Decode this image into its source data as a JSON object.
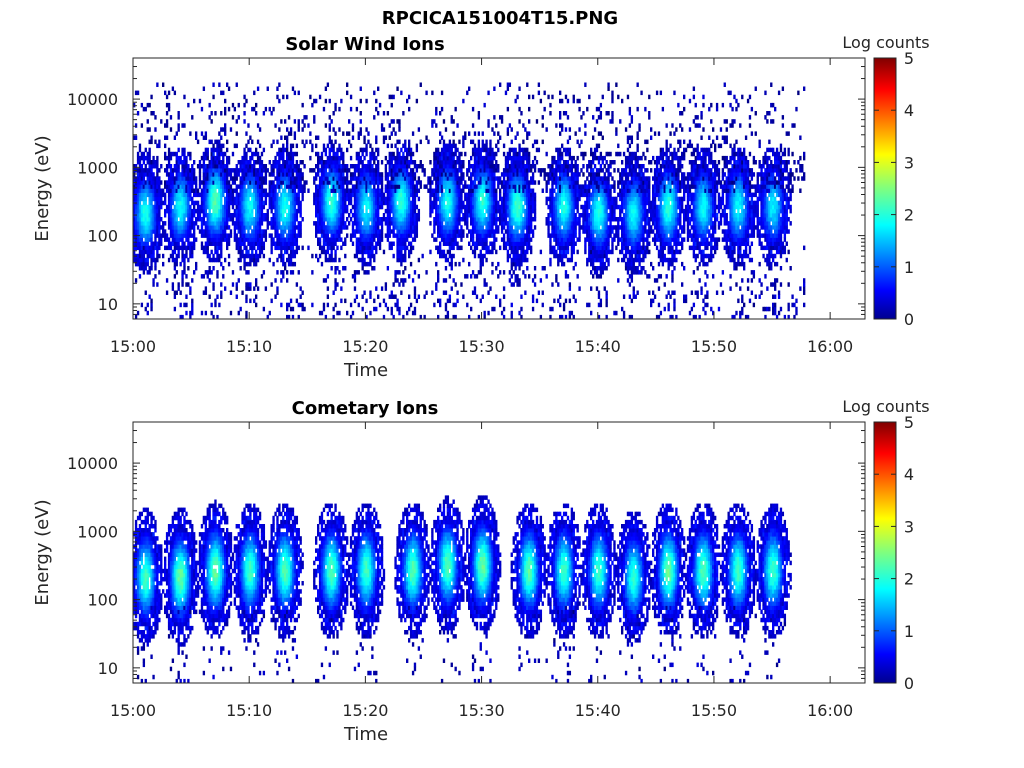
{
  "figure": {
    "title": "RPCICA151004T15.PNG"
  },
  "chart_data": [
    {
      "type": "heatmap",
      "title": "Solar Wind Ions",
      "xlabel": "Time",
      "ylabel": "Energy (eV)",
      "x_range": [
        "15:00",
        "16:03"
      ],
      "x_ticks": [
        "15:00",
        "15:10",
        "15:20",
        "15:30",
        "15:40",
        "15:50",
        "16:00"
      ],
      "y_scale": "log",
      "y_range": [
        6,
        40000
      ],
      "y_ticks": [
        10,
        100,
        1000,
        10000
      ],
      "y_tick_labels": [
        "10",
        "100",
        "1000",
        "10000"
      ],
      "data_extent_x": [
        "15:00",
        "15:57"
      ],
      "colorbar": {
        "label": "Log counts",
        "range": [
          0,
          5
        ],
        "ticks": [
          "0",
          "1",
          "2",
          "3",
          "4",
          "5"
        ],
        "colormap": "jet"
      },
      "bursts": [
        {
          "time": "15:01",
          "peak_eV": 200,
          "peak_log_counts": 2.0
        },
        {
          "time": "15:04",
          "peak_eV": 250,
          "peak_log_counts": 1.9
        },
        {
          "time": "15:07",
          "peak_eV": 300,
          "peak_log_counts": 2.3
        },
        {
          "time": "15:10",
          "peak_eV": 250,
          "peak_log_counts": 1.9
        },
        {
          "time": "15:13",
          "peak_eV": 250,
          "peak_log_counts": 2.0
        },
        {
          "time": "15:17",
          "peak_eV": 300,
          "peak_log_counts": 2.1
        },
        {
          "time": "15:20",
          "peak_eV": 250,
          "peak_log_counts": 1.9
        },
        {
          "time": "15:23",
          "peak_eV": 300,
          "peak_log_counts": 2.1
        },
        {
          "time": "15:27",
          "peak_eV": 300,
          "peak_log_counts": 2.0
        },
        {
          "time": "15:30",
          "peak_eV": 300,
          "peak_log_counts": 2.1
        },
        {
          "time": "15:33",
          "peak_eV": 250,
          "peak_log_counts": 2.2
        },
        {
          "time": "15:37",
          "peak_eV": 250,
          "peak_log_counts": 2.0
        },
        {
          "time": "15:40",
          "peak_eV": 200,
          "peak_log_counts": 2.0
        },
        {
          "time": "15:43",
          "peak_eV": 200,
          "peak_log_counts": 1.9
        },
        {
          "time": "15:46",
          "peak_eV": 250,
          "peak_log_counts": 2.1
        },
        {
          "time": "15:49",
          "peak_eV": 250,
          "peak_log_counts": 1.9
        },
        {
          "time": "15:52",
          "peak_eV": 250,
          "peak_log_counts": 1.9
        },
        {
          "time": "15:55",
          "peak_eV": 250,
          "peak_log_counts": 1.8
        }
      ]
    },
    {
      "type": "heatmap",
      "title": "Cometary Ions",
      "xlabel": "Time",
      "ylabel": "Energy (eV)",
      "x_range": [
        "15:00",
        "16:03"
      ],
      "x_ticks": [
        "15:00",
        "15:10",
        "15:20",
        "15:30",
        "15:40",
        "15:50",
        "16:00"
      ],
      "y_scale": "log",
      "y_range": [
        6,
        40000
      ],
      "y_ticks": [
        10,
        100,
        1000,
        10000
      ],
      "y_tick_labels": [
        "10",
        "100",
        "1000",
        "10000"
      ],
      "data_extent_x": [
        "15:00",
        "15:57"
      ],
      "colorbar": {
        "label": "Log counts",
        "range": [
          0,
          5
        ],
        "ticks": [
          "0",
          "1",
          "2",
          "3",
          "4",
          "5"
        ],
        "colormap": "jet"
      },
      "bursts": [
        {
          "time": "15:01",
          "peak_eV": 200,
          "peak_log_counts": 2.2
        },
        {
          "time": "15:04",
          "peak_eV": 200,
          "peak_log_counts": 2.4
        },
        {
          "time": "15:07",
          "peak_eV": 250,
          "peak_log_counts": 2.4
        },
        {
          "time": "15:10",
          "peak_eV": 250,
          "peak_log_counts": 2.2
        },
        {
          "time": "15:13",
          "peak_eV": 250,
          "peak_log_counts": 2.3
        },
        {
          "time": "15:17",
          "peak_eV": 250,
          "peak_log_counts": 2.3
        },
        {
          "time": "15:20",
          "peak_eV": 250,
          "peak_log_counts": 2.2
        },
        {
          "time": "15:24",
          "peak_eV": 250,
          "peak_log_counts": 2.3
        },
        {
          "time": "15:27",
          "peak_eV": 300,
          "peak_log_counts": 2.3
        },
        {
          "time": "15:30",
          "peak_eV": 300,
          "peak_log_counts": 2.4
        },
        {
          "time": "15:34",
          "peak_eV": 250,
          "peak_log_counts": 2.3
        },
        {
          "time": "15:37",
          "peak_eV": 250,
          "peak_log_counts": 2.2
        },
        {
          "time": "15:40",
          "peak_eV": 250,
          "peak_log_counts": 2.2
        },
        {
          "time": "15:43",
          "peak_eV": 200,
          "peak_log_counts": 2.1
        },
        {
          "time": "15:46",
          "peak_eV": 250,
          "peak_log_counts": 2.4
        },
        {
          "time": "15:49",
          "peak_eV": 250,
          "peak_log_counts": 2.3
        },
        {
          "time": "15:52",
          "peak_eV": 250,
          "peak_log_counts": 2.2
        },
        {
          "time": "15:55",
          "peak_eV": 250,
          "peak_log_counts": 2.2
        }
      ]
    }
  ]
}
